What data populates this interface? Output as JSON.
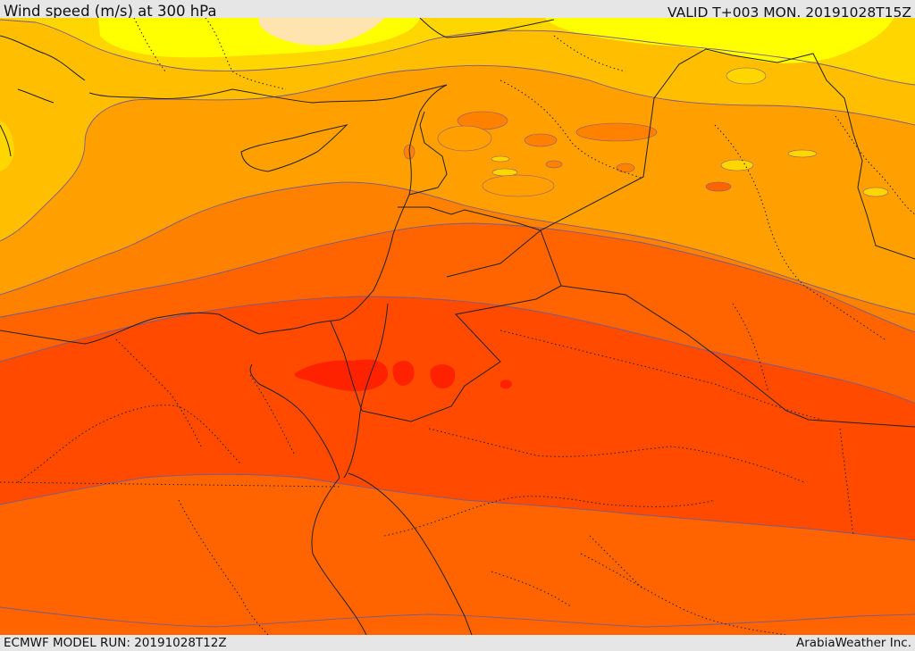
{
  "header": {
    "title": "Wind speed (m/s) at 300 hPa",
    "valid": "VALID T+003 MON. 20191028T15Z"
  },
  "footer": {
    "model_run": "ECMWF MODEL RUN: 20191028T12Z",
    "credit": "ArabiaWeather Inc."
  },
  "map": {
    "region": "Eastern Mediterranean, Levant, Egypt, Arabian Peninsula",
    "field": "wind speed",
    "shading_colors": [
      "#ffe4b0",
      "#ffff00",
      "#ffd600",
      "#ffbf00",
      "#ffa000",
      "#ff8100",
      "#ff6400",
      "#ff4a00",
      "#ff2200"
    ],
    "boundaries": [
      "coastlines",
      "national borders",
      "internal borders (dotted)"
    ]
  }
}
